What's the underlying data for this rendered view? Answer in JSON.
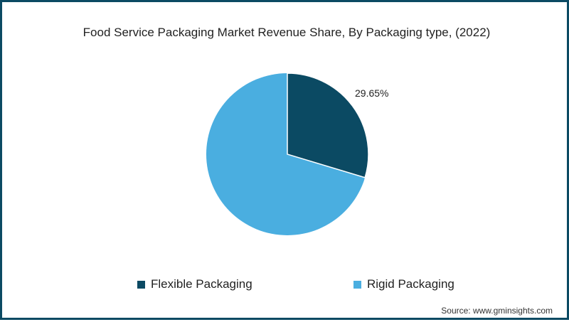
{
  "chart_data": {
    "type": "pie",
    "title": "Food Service Packaging Market Revenue Share, By Packaging type, (2022)",
    "categories": [
      "Flexible Packaging",
      "Rigid Packaging"
    ],
    "values": [
      29.65,
      70.35
    ],
    "colors": [
      "#0b4a63",
      "#4aaee0"
    ],
    "data_labels": [
      "29.65%",
      ""
    ],
    "legend_position": "bottom",
    "source": "Source: www.gminsights.com"
  },
  "title": "Food Service Packaging Market Revenue Share, By Packaging type, (2022)",
  "slice_label": "29.65%",
  "legend": [
    {
      "label": "Flexible Packaging",
      "color": "#0b4a63"
    },
    {
      "label": "Rigid Packaging",
      "color": "#4aaee0"
    }
  ],
  "source": "Source: www.gminsights.com"
}
